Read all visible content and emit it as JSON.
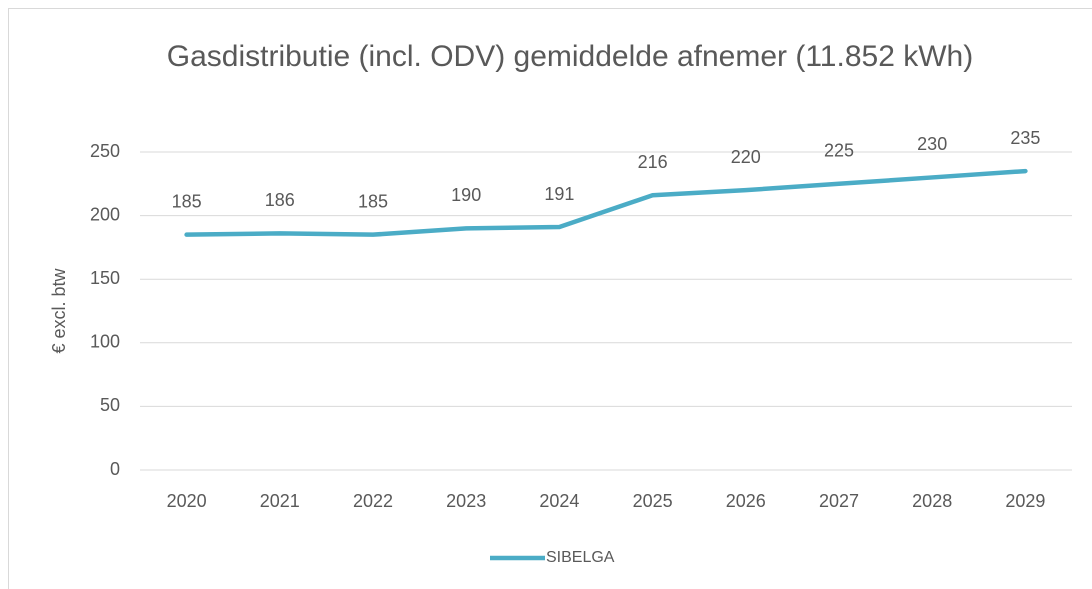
{
  "chart_data": {
    "type": "line",
    "title": "Gasdistributie (incl. ODV) gemiddelde afnemer (11.852 kWh)",
    "y_label": "€ excl. btw",
    "categories": [
      "2020",
      "2021",
      "2022",
      "2023",
      "2024",
      "2025",
      "2026",
      "2027",
      "2028",
      "2029"
    ],
    "series": [
      {
        "name": "SIBELGA",
        "color": "#4bacc6",
        "values": [
          185,
          186,
          185,
          190,
          191,
          216,
          220,
          225,
          230,
          235
        ]
      }
    ],
    "ylim": [
      0,
      250
    ],
    "yticks": [
      0,
      50,
      100,
      150,
      200,
      250
    ],
    "grid": true,
    "legend": "bottom"
  }
}
